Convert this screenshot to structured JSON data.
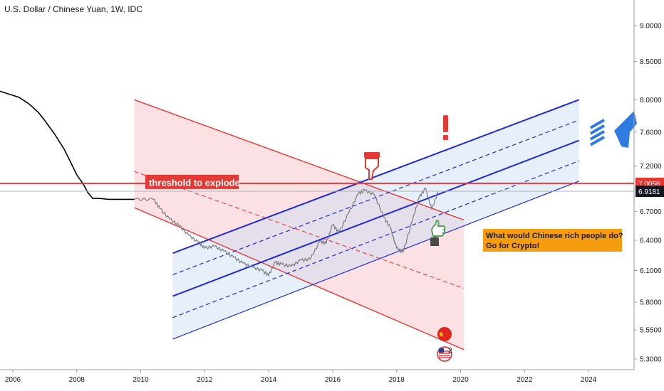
{
  "title": "U.S. Dollar / Chinese Yuan, 1W, IDC",
  "colors": {
    "accent_red": "#e53935",
    "channel_blue": "#1e2bd6",
    "note_orange": "#f59d0e",
    "price_black": "#000000",
    "price_gray": "#7a7a7a"
  },
  "chart_data": {
    "type": "line",
    "title": "U.S. Dollar / Chinese Yuan, 1W, IDC",
    "xlabel": "",
    "ylabel": "",
    "scale": "log",
    "ylim": [
      5.2,
      9.2
    ],
    "xlim": [
      2005.6,
      2025.2
    ],
    "x_ticks": [
      "2006",
      "2008",
      "2010",
      "2012",
      "2014",
      "2016",
      "2018",
      "2020",
      "2022",
      "2024"
    ],
    "y_ticks": [
      "5.3000",
      "5.5500",
      "5.8000",
      "6.1000",
      "6.4000",
      "6.7000",
      "7.2000",
      "7.6000",
      "8.0000",
      "8.5000",
      "9.0000"
    ],
    "grid": false,
    "series": [
      {
        "values_x": [
          2005.6,
          2005.9,
          2006.2,
          2006.5,
          2006.8,
          2007.0,
          2007.3,
          2007.6,
          2007.8,
          2008.0,
          2008.2,
          2008.35,
          2008.5,
          2008.7,
          2009.0,
          2009.4,
          2009.8
        ],
        "values_y": [
          8.11,
          8.07,
          8.03,
          7.95,
          7.84,
          7.74,
          7.58,
          7.4,
          7.25,
          7.1,
          7.0,
          6.9,
          6.84,
          6.84,
          6.83,
          6.83,
          6.83
        ]
      },
      {
        "values_x": [
          2009.8,
          2010.4,
          2010.6,
          2010.9,
          2011.2,
          2011.5,
          2011.8,
          2012.0,
          2012.3,
          2012.6,
          2012.9,
          2013.2,
          2013.5,
          2013.8,
          2014.0,
          2014.2,
          2014.4,
          2014.7,
          2015.0,
          2015.3,
          2015.6,
          2015.8,
          2016.0,
          2016.2,
          2016.5,
          2016.8,
          2017.0,
          2017.3,
          2017.6,
          2017.8,
          2018.0,
          2018.2,
          2018.5,
          2018.7,
          2018.9,
          2019.1,
          2019.3
        ],
        "values_y": [
          6.83,
          6.83,
          6.73,
          6.62,
          6.55,
          6.45,
          6.38,
          6.32,
          6.34,
          6.29,
          6.23,
          6.17,
          6.13,
          6.1,
          6.05,
          6.18,
          6.16,
          6.14,
          6.2,
          6.21,
          6.39,
          6.37,
          6.56,
          6.48,
          6.68,
          6.89,
          6.93,
          6.88,
          6.64,
          6.53,
          6.32,
          6.28,
          6.61,
          6.85,
          6.95,
          6.72,
          6.92
        ]
      }
    ],
    "channels": {
      "red": {
        "start": [
          2009.8,
          8.0
        ],
        "end": [
          2020.1,
          6.61
        ],
        "lower_start": [
          2009.8,
          6.74
        ],
        "lower_end": [
          2020.1,
          5.38
        ]
      },
      "blue": {
        "top_start": [
          2011.0,
          6.27
        ],
        "top_end": [
          2023.7,
          8.0
        ],
        "bottom_start": [
          2011.0,
          5.47
        ],
        "bottom_end": [
          2023.7,
          7.03
        ]
      }
    },
    "annotations": [
      {
        "text": "threshold to explode",
        "price": 7.0056
      },
      {
        "text": "What would Chinese rich people do? Go for Crypto!"
      }
    ],
    "price_labels": [
      "7.0056",
      "6.9181"
    ],
    "event_count": "2"
  },
  "labels": {
    "threshold": "threshold to explode",
    "note_line1": "What would Chinese rich people do?",
    "note_line2": "Go for Crypto!",
    "price_threshold": "7.0056",
    "price_last": "6.9181",
    "event_count": "2"
  },
  "icons": [
    "pointing-hand-icon",
    "exclamation-icon",
    "thumbs-up-icon",
    "rocket-icon",
    "china-flag-icon",
    "us-flag-icon"
  ]
}
